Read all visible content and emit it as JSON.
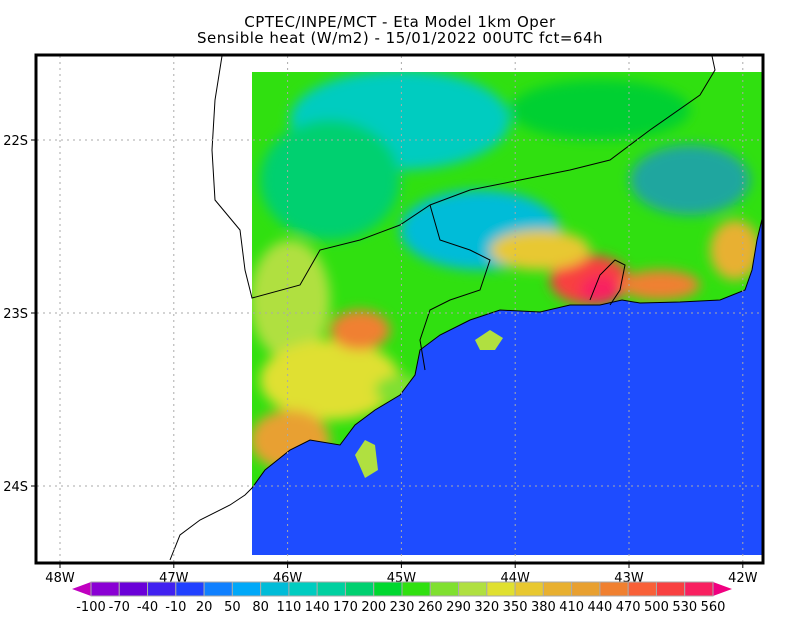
{
  "header": {
    "line1": "CPTEC/INPE/MCT -  Eta Model 1km Oper",
    "line2": "Sensible heat (W/m2) - 15/01/2022 00UTC fct=64h"
  },
  "map": {
    "lon_labels": [
      "48W",
      "47W",
      "46W",
      "45W",
      "44W",
      "43W",
      "42W"
    ],
    "lon_values": [
      -48,
      -47,
      -46,
      -45,
      -44,
      -43,
      -42
    ],
    "lat_labels": [
      "22S",
      "23S",
      "24S"
    ],
    "lat_values": [
      -22,
      -23,
      -24
    ],
    "ocean_color": "#1e4cff",
    "grid": "dotted"
  },
  "colorbar": {
    "labels": [
      "-100",
      "-70",
      "-40",
      "-10",
      "20",
      "50",
      "80",
      "110",
      "140",
      "170",
      "200",
      "230",
      "260",
      "290",
      "320",
      "350",
      "380",
      "410",
      "440",
      "470",
      "500",
      "530",
      "560"
    ],
    "colors": [
      "#8a00d4",
      "#6a00d8",
      "#4020f0",
      "#2040ff",
      "#1080ff",
      "#00a8f8",
      "#00bcd8",
      "#00ccc0",
      "#00d0a0",
      "#00d070",
      "#00d830",
      "#30e010",
      "#80e030",
      "#b0e040",
      "#e0e030",
      "#e8c830",
      "#e8b030",
      "#e8a030",
      "#f08030",
      "#f86038",
      "#f84040",
      "#f82060"
    ],
    "low_color": "#c000c0",
    "high_color": "#f00080"
  }
}
